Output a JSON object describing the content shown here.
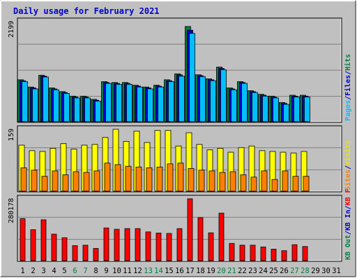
{
  "chart_data": {
    "type": "bar",
    "title": "Daily usage for February 2021",
    "days": [
      "1",
      "2",
      "3",
      "4",
      "5",
      "6",
      "7",
      "8",
      "9",
      "10",
      "11",
      "12",
      "13",
      "14",
      "15",
      "16",
      "17",
      "18",
      "19",
      "20",
      "21",
      "22",
      "23",
      "24",
      "25",
      "26",
      "27",
      "28",
      "29",
      "30",
      "31"
    ],
    "weekend_days": [
      "6",
      "7",
      "13",
      "14",
      "20",
      "21",
      "27",
      "28"
    ],
    "panels": [
      {
        "id": "hits-files-pages",
        "max_label": "2199",
        "ymax": 2199,
        "right_labels": [
          {
            "text": "Hits",
            "color": "#008040"
          },
          {
            "text": "/",
            "color": "#0000cc"
          },
          {
            "text": "Files",
            "color": "#0000cc"
          },
          {
            "text": "/",
            "color": "#0000cc"
          },
          {
            "text": "Pages",
            "color": "#00bfff"
          }
        ],
        "series": [
          {
            "name": "Hits",
            "color": "#008040",
            "values": [
              920,
              760,
              1020,
              740,
              660,
              560,
              560,
              490,
              880,
              860,
              860,
              800,
              760,
              800,
              920,
              1050,
              2090,
              1030,
              940,
              1200,
              740,
              880,
              680,
              600,
              560,
              420,
              580,
              580,
              0,
              0,
              0
            ]
          },
          {
            "name": "Files",
            "color": "#0000cc",
            "values": [
              900,
              740,
              1000,
              720,
              640,
              540,
              540,
              470,
              860,
              840,
              840,
              780,
              740,
              780,
              900,
              1030,
              2010,
              1010,
              920,
              1170,
              720,
              860,
              660,
              580,
              540,
              400,
              560,
              560,
              0,
              0,
              0
            ]
          },
          {
            "name": "Pages",
            "color": "#00bfff",
            "values": [
              880,
              720,
              980,
              700,
              620,
              520,
              520,
              450,
              840,
              820,
              820,
              760,
              720,
              760,
              880,
              1000,
              1940,
              990,
              900,
              1140,
              700,
              840,
              640,
              560,
              520,
              380,
              540,
              540,
              0,
              0,
              0
            ]
          }
        ]
      },
      {
        "id": "visits-sites",
        "max_label": "159",
        "ymax": 159,
        "right_labels": [
          {
            "text": "Visits",
            "color": "#e6e600"
          },
          {
            "text": "/",
            "color": "#0000cc"
          },
          {
            "text": "Sites",
            "color": "#ff8000"
          }
        ],
        "series": [
          {
            "name": "Visits",
            "color": "#ffff00",
            "values": [
              118,
              104,
              102,
              110,
              122,
              108,
              118,
              120,
              138,
              159,
              128,
              154,
              125,
              156,
              156,
              116,
              150,
              120,
              106,
              110,
              100,
              112,
              116,
              104,
              102,
              100,
              98,
              102,
              0,
              0,
              0
            ]
          },
          {
            "name": "Sites",
            "color": "#ff8000",
            "values": [
              60,
              54,
              38,
              52,
              42,
              50,
              48,
              52,
              72,
              68,
              64,
              62,
              60,
              62,
              70,
              72,
              58,
              54,
              52,
              48,
              50,
              42,
              36,
              52,
              30,
              52,
              38,
              38,
              0,
              0,
              0
            ]
          }
        ]
      },
      {
        "id": "kbytes",
        "max_label": "280178",
        "ymax": 280178,
        "right_labels": [
          {
            "text": "KB F",
            "color": "#ff0000"
          },
          {
            "text": "/",
            "color": "#0000cc"
          },
          {
            "text": "KB In",
            "color": "#0000cc"
          },
          {
            "text": "/",
            "color": "#0000cc"
          },
          {
            "text": "KB Out",
            "color": "#008040"
          }
        ],
        "series": [
          {
            "name": "KB F",
            "color": "#ff0000",
            "values": [
              190000,
              140000,
              185000,
              120000,
              104000,
              68000,
              70000,
              55000,
              148000,
              142000,
              145000,
              145000,
              130000,
              125000,
              123000,
              145000,
              280178,
              195000,
              126000,
              215000,
              78000,
              70000,
              70000,
              62000,
              52000,
              45000,
              72000,
              64000,
              0,
              0,
              0
            ]
          }
        ]
      }
    ]
  }
}
